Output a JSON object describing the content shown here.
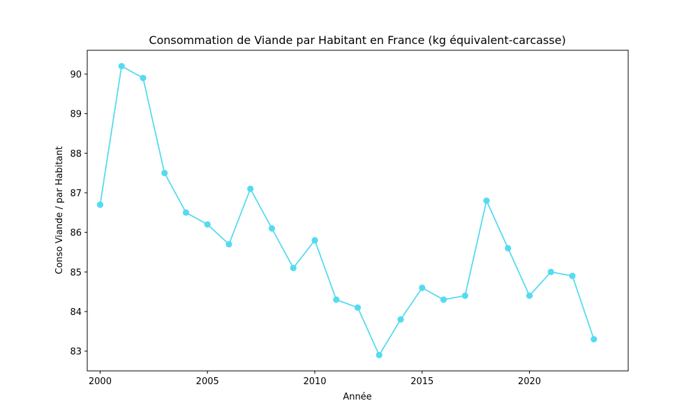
{
  "chart_data": {
    "type": "line",
    "title": "Consommation de Viande par Habitant en France (kg équivalent-carcasse)",
    "xlabel": "Année",
    "ylabel": "Conso Viande / par Habitant",
    "x": [
      2000,
      2001,
      2002,
      2003,
      2004,
      2005,
      2006,
      2007,
      2008,
      2009,
      2010,
      2011,
      2012,
      2013,
      2014,
      2015,
      2016,
      2017,
      2018,
      2019,
      2020,
      2021,
      2022,
      2023
    ],
    "series": [
      {
        "values": [
          86.7,
          90.2,
          89.9,
          87.5,
          86.5,
          86.2,
          85.7,
          87.1,
          86.1,
          85.1,
          85.8,
          84.3,
          84.1,
          82.9,
          83.8,
          84.6,
          84.3,
          84.4,
          86.8,
          85.6,
          84.4,
          85.0,
          84.9,
          83.3
        ],
        "color": "#55dbef"
      }
    ],
    "xlim": [
      1999.4,
      2024.6
    ],
    "ylim": [
      82.5,
      90.6
    ],
    "xticks": [
      2000,
      2005,
      2010,
      2015,
      2020
    ],
    "yticks": [
      83,
      84,
      85,
      86,
      87,
      88,
      89,
      90
    ],
    "grid": false,
    "legend": false
  }
}
